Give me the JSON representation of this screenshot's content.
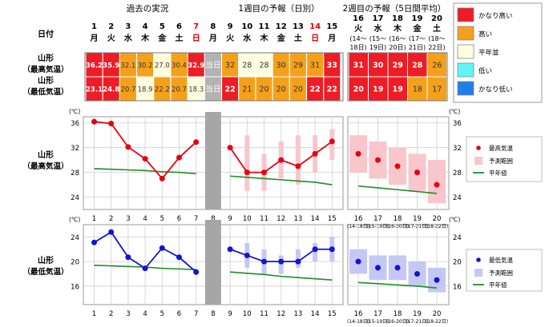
{
  "section_titles": [
    "過去の実況",
    "1週目の予報（日別）",
    "2週目の予報（5日間平均）"
  ],
  "date_row_label": "日付",
  "days": [
    {
      "date": "1",
      "dow": "月",
      "color": "#000000"
    },
    {
      "date": "2",
      "dow": "火",
      "color": "#000000"
    },
    {
      "date": "3",
      "dow": "水",
      "color": "#000000"
    },
    {
      "date": "4",
      "dow": "木",
      "color": "#000000"
    },
    {
      "date": "5",
      "dow": "金",
      "color": "#000000"
    },
    {
      "date": "6",
      "dow": "土",
      "color": "#000000"
    },
    {
      "date": "7",
      "dow": "日",
      "color": "#e60000"
    },
    {
      "date": "8",
      "dow": "月",
      "color": "#000000"
    },
    {
      "date": "9",
      "dow": "火",
      "color": "#000000"
    },
    {
      "date": "10",
      "dow": "水",
      "color": "#000000"
    },
    {
      "date": "11",
      "dow": "木",
      "color": "#000000"
    },
    {
      "date": "12",
      "dow": "金",
      "color": "#000000"
    },
    {
      "date": "13",
      "dow": "土",
      "color": "#000000"
    },
    {
      "date": "14",
      "dow": "日",
      "color": "#e60000"
    },
    {
      "date": "15",
      "dow": "月",
      "color": "#000000"
    }
  ],
  "week2_periods": [
    {
      "date": "16",
      "dow": "火",
      "range": "(14～18日)"
    },
    {
      "date": "17",
      "dow": "水",
      "range": "(15～19日)"
    },
    {
      "date": "18",
      "dow": "木",
      "range": "(16～20日)"
    },
    {
      "date": "19",
      "dow": "金",
      "range": "(17～21日)"
    },
    {
      "date": "20",
      "dow": "土",
      "range": "(18～22日)"
    }
  ],
  "row_labels": {
    "max_line1": "山形",
    "max_line2": "（最高気温）",
    "min_line1": "山形",
    "min_line2": "（最低気温）"
  },
  "today_label": "当日",
  "category_legend": [
    {
      "label": "かなり高い",
      "color": "#ee1c25"
    },
    {
      "label": "高い",
      "color": "#f5a01a"
    },
    {
      "label": "平年並",
      "color": "#fffce0"
    },
    {
      "label": "低い",
      "color": "#5ff5f5"
    },
    {
      "label": "かなり低い",
      "color": "#1f7fe8"
    }
  ],
  "category_colors": {
    "kh": "#ee1c25",
    "h": "#f5a01a",
    "n": "#fffce0",
    "l": "#5ff5f5",
    "kl": "#1f7fe8",
    "g": "#b3b3b3"
  },
  "table_max": [
    {
      "text": "36.2",
      "cat": "kh"
    },
    {
      "text": "35.9",
      "cat": "kh"
    },
    {
      "text": "32.1",
      "cat": "h"
    },
    {
      "text": "30.2",
      "cat": "h"
    },
    {
      "text": "27.0",
      "cat": "n"
    },
    {
      "text": "30.4",
      "cat": "h"
    },
    {
      "text": "32.9",
      "cat": "kh"
    },
    {
      "text": "当日",
      "cat": "g"
    },
    {
      "text": "32",
      "cat": "h"
    },
    {
      "text": "28",
      "cat": "n"
    },
    {
      "text": "28",
      "cat": "n"
    },
    {
      "text": "30",
      "cat": "h"
    },
    {
      "text": "29",
      "cat": "h"
    },
    {
      "text": "31",
      "cat": "h"
    },
    {
      "text": "33",
      "cat": "kh"
    }
  ],
  "table_min": [
    {
      "text": "23.1",
      "cat": "kh"
    },
    {
      "text": "24.8",
      "cat": "kh"
    },
    {
      "text": "20.7",
      "cat": "h"
    },
    {
      "text": "18.9",
      "cat": "n"
    },
    {
      "text": "22.2",
      "cat": "h"
    },
    {
      "text": "20.7",
      "cat": "h"
    },
    {
      "text": "18.3",
      "cat": "n"
    },
    {
      "text": "当日",
      "cat": "g"
    },
    {
      "text": "22",
      "cat": "kh"
    },
    {
      "text": "21",
      "cat": "h"
    },
    {
      "text": "20",
      "cat": "h"
    },
    {
      "text": "20",
      "cat": "h"
    },
    {
      "text": "20",
      "cat": "h"
    },
    {
      "text": "22",
      "cat": "kh"
    },
    {
      "text": "22",
      "cat": "kh"
    }
  ],
  "table_week2_max": [
    {
      "text": "31",
      "cat": "kh"
    },
    {
      "text": "30",
      "cat": "kh"
    },
    {
      "text": "29",
      "cat": "kh"
    },
    {
      "text": "28",
      "cat": "kh"
    },
    {
      "text": "26",
      "cat": "h"
    }
  ],
  "table_week2_min": [
    {
      "text": "20",
      "cat": "kh"
    },
    {
      "text": "19",
      "cat": "kh"
    },
    {
      "text": "19",
      "cat": "kh"
    },
    {
      "text": "18",
      "cat": "h"
    },
    {
      "text": "17",
      "cat": "h"
    }
  ],
  "unit_label": "(℃)",
  "chart_legend": {
    "max_point": "最高気温",
    "min_point": "最低気温",
    "range": "予測範囲",
    "normal": "平年値"
  },
  "colors": {
    "max_series": "#e60012",
    "max_range": "#f9c6cc",
    "min_series": "#1414d2",
    "min_range": "#c5c8f5",
    "normal": "#1e8c28",
    "grid": "#cfcfcf",
    "gray_band": "#a6a6a6"
  },
  "chart_data": [
    {
      "type": "line",
      "title": "山形（最高気温）",
      "ylabel": "℃",
      "ylim": [
        22,
        37
      ],
      "yticks": [
        24,
        28,
        32,
        36
      ],
      "categories": [
        "1",
        "2",
        "3",
        "4",
        "5",
        "6",
        "7",
        "8",
        "9",
        "10",
        "11",
        "12",
        "13",
        "14",
        "15"
      ],
      "series": [
        {
          "name": "最高気温",
          "values": [
            36.2,
            35.9,
            32.1,
            30.2,
            27.0,
            30.4,
            32.9,
            null,
            32,
            28,
            28,
            30,
            29,
            31,
            33
          ]
        },
        {
          "name": "予測範囲",
          "values": [
            null,
            null,
            null,
            null,
            null,
            null,
            null,
            null,
            null,
            [
              25,
              34
            ],
            [
              25,
              31
            ],
            [
              27,
              33
            ],
            [
              26,
              34
            ],
            [
              28,
              34
            ],
            [
              30,
              35
            ]
          ]
        },
        {
          "name": "平年値",
          "values": [
            28.6,
            28.5,
            28.4,
            28.3,
            28.1,
            28.0,
            27.8,
            null,
            27.4,
            27.2,
            27.0,
            26.8,
            26.6,
            26.4,
            26.0
          ]
        }
      ],
      "week2": {
        "categories": [
          "16",
          "17",
          "18",
          "19",
          "20"
        ],
        "ranges": [
          "(14-18日)",
          "(15-19日)",
          "(16-20日)",
          "(17-21日)",
          "(18-22日)"
        ],
        "values": [
          31,
          30,
          29,
          28,
          26
        ],
        "range": [
          [
            28,
            34
          ],
          [
            27,
            33
          ],
          [
            26,
            32
          ],
          [
            25,
            31
          ],
          [
            23,
            30
          ]
        ],
        "normal": [
          25.8,
          25.5,
          25.2,
          24.9,
          24.6
        ]
      }
    },
    {
      "type": "line",
      "title": "山形（最低気温）",
      "ylabel": "℃",
      "ylim": [
        13,
        26
      ],
      "yticks": [
        16,
        20,
        24
      ],
      "categories": [
        "1",
        "2",
        "3",
        "4",
        "5",
        "6",
        "7",
        "8",
        "9",
        "10",
        "11",
        "12",
        "13",
        "14",
        "15"
      ],
      "series": [
        {
          "name": "最低気温",
          "values": [
            23.1,
            24.8,
            20.7,
            18.9,
            22.2,
            20.7,
            18.3,
            null,
            22,
            21,
            20,
            20,
            20,
            22,
            22
          ]
        },
        {
          "name": "予測範囲",
          "values": [
            null,
            null,
            null,
            null,
            null,
            null,
            null,
            null,
            null,
            [
              19,
              23
            ],
            [
              18,
              22
            ],
            [
              18,
              21
            ],
            [
              19,
              22
            ],
            [
              20,
              23
            ],
            [
              20,
              24
            ]
          ]
        },
        {
          "name": "平年値",
          "values": [
            19.4,
            19.3,
            19.2,
            19.1,
            18.9,
            18.8,
            18.7,
            null,
            18.3,
            18.1,
            17.9,
            17.6,
            17.4,
            17.2,
            17.0
          ]
        }
      ],
      "week2": {
        "categories": [
          "16",
          "17",
          "18",
          "19",
          "20"
        ],
        "ranges": [
          "(14-18日)",
          "(15-19日)",
          "(16-20日)",
          "(17-21日)",
          "(18-22日)"
        ],
        "values": [
          20,
          19,
          19,
          18,
          17
        ],
        "range": [
          [
            18,
            22
          ],
          [
            17,
            21
          ],
          [
            17,
            21
          ],
          [
            16,
            20
          ],
          [
            15,
            19
          ]
        ],
        "normal": [
          16.6,
          16.4,
          16.2,
          16.0,
          15.7
        ]
      }
    }
  ]
}
